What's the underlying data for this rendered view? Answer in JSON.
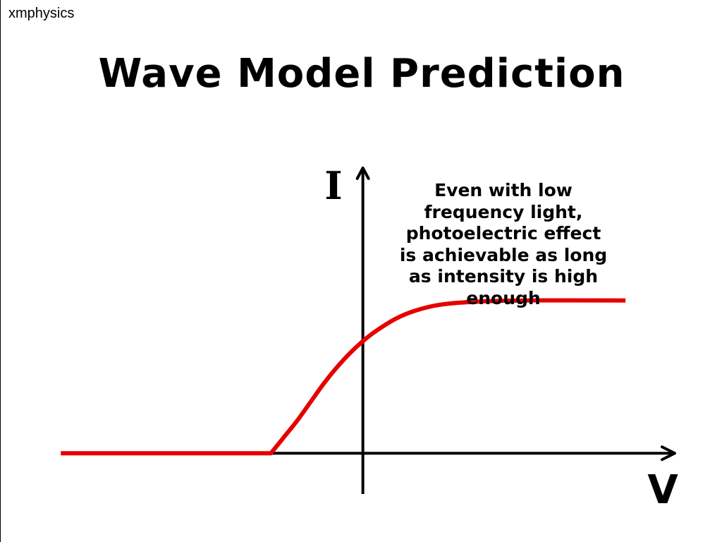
{
  "watermark": "xmphysics",
  "slide": {
    "title": "Wave Model Prediction"
  },
  "chart_data": {
    "type": "line",
    "title": "Wave Model Prediction",
    "xlabel": "V",
    "ylabel": "I",
    "annotation": "Even with low\nfrequency light,\nphotoelectric effect\nis achievable as long\nas intensity is high\nenough",
    "series": [
      {
        "color": "#e60000",
        "points": [
          [
            -4.6,
            0
          ],
          [
            -1.4,
            0
          ],
          [
            -1.2,
            0.08
          ],
          [
            -1.0,
            0.16
          ],
          [
            -0.8,
            0.25
          ],
          [
            -0.6,
            0.34
          ],
          [
            -0.4,
            0.42
          ],
          [
            -0.2,
            0.49
          ],
          [
            0.0,
            0.55
          ],
          [
            0.2,
            0.6
          ],
          [
            0.5,
            0.66
          ],
          [
            0.8,
            0.7
          ],
          [
            1.2,
            0.73
          ],
          [
            1.8,
            0.745
          ],
          [
            2.6,
            0.75
          ],
          [
            4.0,
            0.75
          ]
        ]
      }
    ],
    "axes_color": "#000000",
    "xlim": [
      -5,
      4.75
    ],
    "ylim": [
      -0.2,
      1.4
    ],
    "ticks": "none",
    "grid": false
  }
}
